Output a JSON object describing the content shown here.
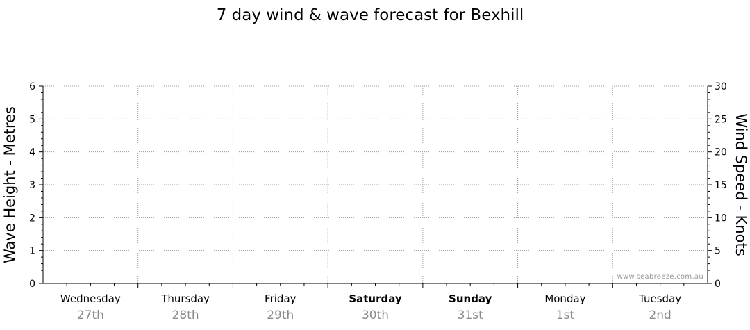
{
  "chart_data": {
    "type": "line",
    "title": "7 day wind & wave forecast for Bexhill",
    "ylabel_left": "Wave Height - Metres",
    "ylabel_right": "Wind Speed - Knots",
    "y_left_range": [
      0,
      6
    ],
    "y_left_ticks": [
      "0",
      "1",
      "2",
      "3",
      "4",
      "5",
      "6"
    ],
    "y_right_range": [
      0,
      30
    ],
    "y_right_ticks": [
      "0",
      "5",
      "10",
      "15",
      "20",
      "25",
      "30"
    ],
    "grid": true,
    "days": [
      {
        "day": "Wednesday",
        "date": "27th",
        "bold": false
      },
      {
        "day": "Thursday",
        "date": "28th",
        "bold": false
      },
      {
        "day": "Friday",
        "date": "29th",
        "bold": false
      },
      {
        "day": "Saturday",
        "date": "30th",
        "bold": true
      },
      {
        "day": "Sunday",
        "date": "31st",
        "bold": true
      },
      {
        "day": "Monday",
        "date": "1st",
        "bold": false
      },
      {
        "day": "Tuesday",
        "date": "2nd",
        "bold": false
      }
    ],
    "series": []
  },
  "watermark": "www.seabreeze.com.au",
  "colors": {
    "grid": "#9a9a9a",
    "axis": "#000000",
    "date_text": "#8a8a8a"
  }
}
